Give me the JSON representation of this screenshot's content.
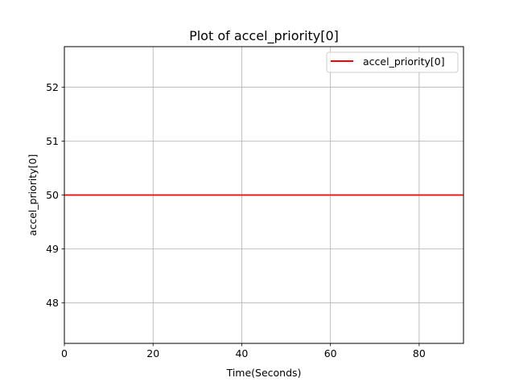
{
  "chart_data": {
    "type": "line",
    "title": "Plot of accel_priority[0]",
    "xlabel": "Time(Seconds)",
    "ylabel": "accel_priority[0]",
    "xlim": [
      0,
      90
    ],
    "ylim": [
      47.25,
      52.75
    ],
    "xticks": [
      0,
      20,
      40,
      60,
      80
    ],
    "yticks": [
      48,
      49,
      50,
      51,
      52
    ],
    "grid": true,
    "legend_position": "top-right",
    "series": [
      {
        "name": "accel_priority[0]",
        "color": "#ff0000",
        "x": [
          0,
          90
        ],
        "y": [
          50,
          50
        ]
      }
    ]
  }
}
